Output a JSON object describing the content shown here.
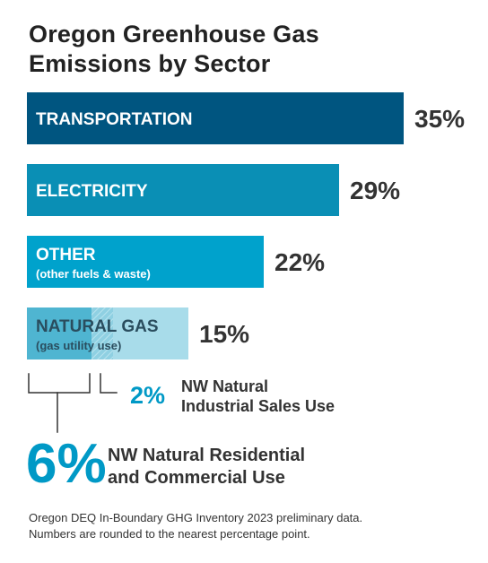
{
  "title_lines": [
    "Oregon Greenhouse Gas",
    "Emissions by Sector"
  ],
  "colors": {
    "transportation": "#005580",
    "electricity": "#0a8fb5",
    "other": "#00a2cc",
    "natural_gas_light": "#a8dcea",
    "natural_gas_mid": "#8fd0e2",
    "natural_gas_dark": "#4fb5d1",
    "pct_text": "#333333",
    "breakdown_text": "#0099c6"
  },
  "chart_data": {
    "type": "bar",
    "orientation": "horizontal",
    "title": "Oregon Greenhouse Gas Emissions by Sector",
    "xlim": [
      0,
      35
    ],
    "categories": [
      {
        "label": "TRANSPORTATION",
        "sublabel": "",
        "value": 35,
        "value_label": "35%"
      },
      {
        "label": "ELECTRICITY",
        "sublabel": "",
        "value": 29,
        "value_label": "29%"
      },
      {
        "label": "OTHER",
        "sublabel": "(other fuels & waste)",
        "value": 22,
        "value_label": "22%"
      },
      {
        "label": "NATURAL GAS",
        "sublabel": "(gas utility use)",
        "value": 15,
        "value_label": "15%"
      }
    ],
    "breakdown": {
      "parent": "NATURAL GAS",
      "segments": [
        {
          "value": 6,
          "value_label": "6%",
          "label_lines": [
            "NW Natural Residential",
            "and Commercial Use"
          ]
        },
        {
          "value": 2,
          "value_label": "2%",
          "label_lines": [
            "NW Natural",
            "Industrial Sales Use"
          ]
        }
      ]
    }
  },
  "source_lines": [
    "Oregon DEQ In-Boundary GHG Inventory 2023 preliminary data.",
    "Numbers are rounded to the nearest percentage point."
  ]
}
